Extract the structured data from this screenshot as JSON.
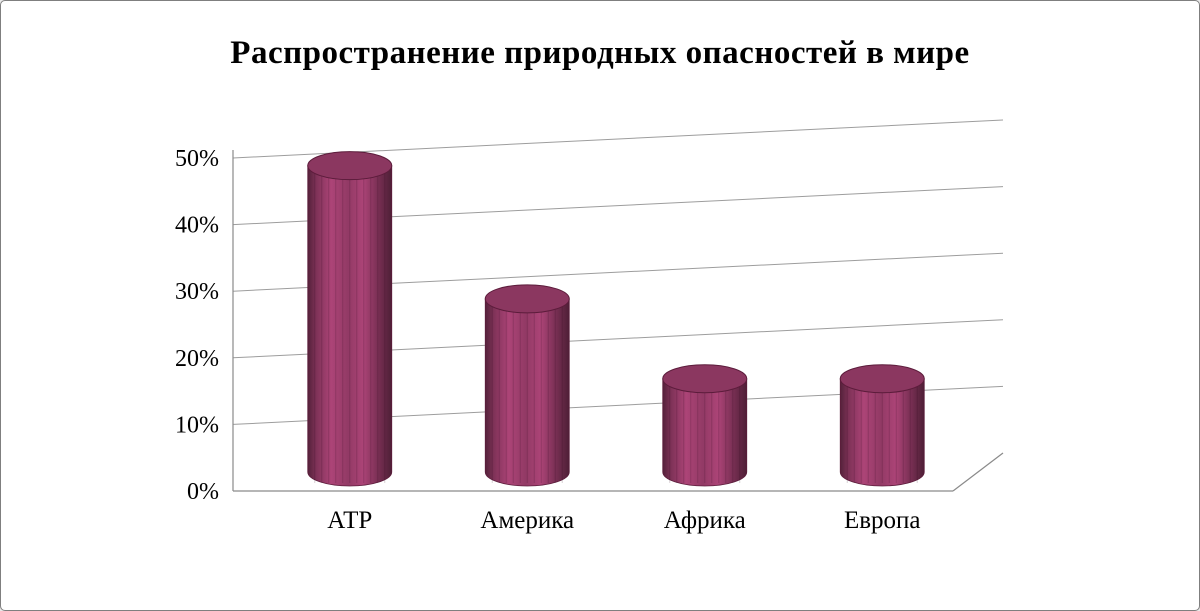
{
  "chart_data": {
    "type": "bar",
    "subtype": "cylinder-3d",
    "title": "Распространение природных опасностей в мире",
    "categories": [
      "АТР",
      "Америка",
      "Африка",
      "Европа"
    ],
    "values": [
      46,
      26,
      14,
      14
    ],
    "unit": "%",
    "ylim": [
      0,
      50
    ],
    "ytick_step": 10,
    "ytick_labels": [
      "0%",
      "10%",
      "20%",
      "30%",
      "40%",
      "50%"
    ],
    "grid": true,
    "legend": false,
    "bar_color": "#a24070",
    "bar_edge_color": "#5c1c3b",
    "grid_color": "#9d9d9d",
    "axis_color": "#8a8a8a",
    "text_color": "#000000"
  }
}
